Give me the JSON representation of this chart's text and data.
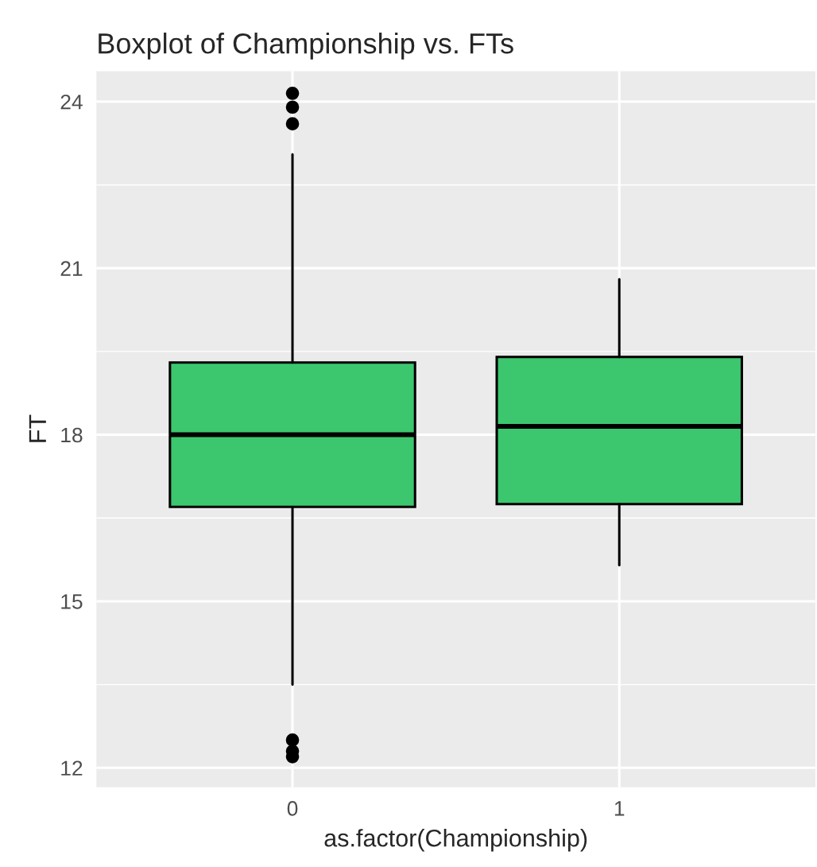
{
  "chart_data": {
    "type": "box",
    "title": "Boxplot of Championship vs. FTs",
    "xlabel": "as.factor(Championship)",
    "ylabel": "FT",
    "categories": [
      "0",
      "1"
    ],
    "series": [
      {
        "color": "#3cc76f",
        "boxes": [
          {
            "low": 13.5,
            "q1": 16.7,
            "median": 18.0,
            "q3": 19.3,
            "high": 23.05,
            "outliers": [
              24.15,
              23.9,
              23.6,
              12.5,
              12.3,
              12.2
            ]
          },
          {
            "low": 15.65,
            "q1": 16.75,
            "median": 18.15,
            "q3": 19.4,
            "high": 20.8
          }
        ]
      }
    ],
    "ylim": [
      11.65,
      24.55
    ],
    "yticks": [
      12,
      15,
      18,
      21,
      24
    ],
    "grid": true,
    "legend": false
  }
}
